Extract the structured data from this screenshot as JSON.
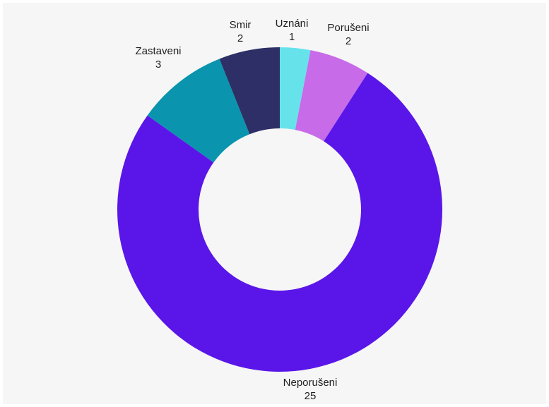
{
  "chart_data": {
    "type": "pie",
    "donut": true,
    "title": "",
    "legend": "none",
    "slices": [
      {
        "label": "Uznáni",
        "value": 1,
        "color": "#66E3EA"
      },
      {
        "label": "Porušeni",
        "value": 2,
        "color": "#C76BE8"
      },
      {
        "label": "Neporušeni",
        "value": 25,
        "color": "#5A16E8"
      },
      {
        "label": "Zastaveni",
        "value": 3,
        "color": "#0A94AE"
      },
      {
        "label": "Smir",
        "value": 2,
        "color": "#2E2F66"
      }
    ]
  }
}
